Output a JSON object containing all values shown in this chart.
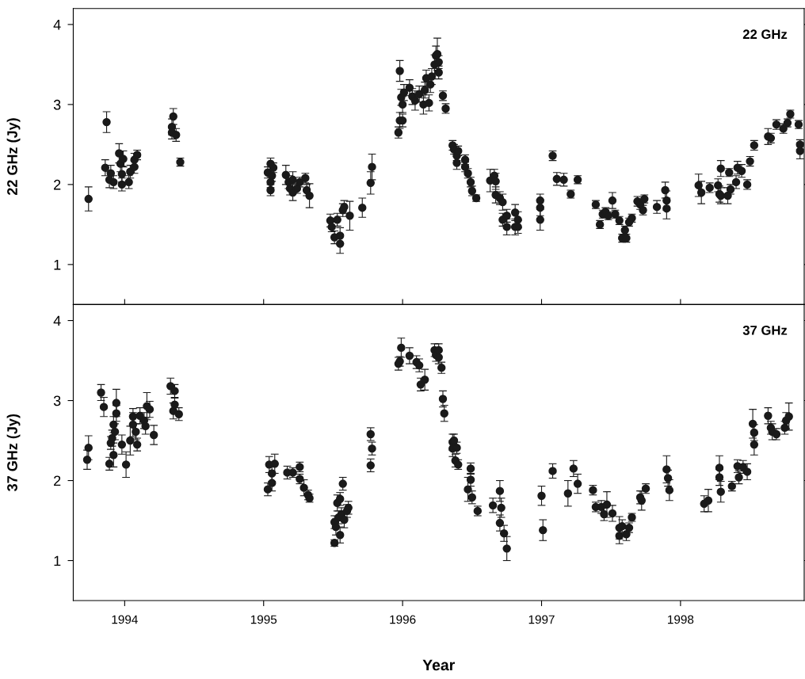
{
  "chart_data": [
    {
      "type": "scatter",
      "ylabel": "22 GHz (Jy)",
      "annotations": [
        "22 GHz"
      ],
      "marker": "circle",
      "color": "#1a1a1a",
      "tick_labels": "y",
      "xlim": [
        1993.63,
        1998.89
      ],
      "xticks": [
        1994,
        1995,
        1996,
        1997,
        1998
      ],
      "ylim": [
        0.5,
        4.2
      ],
      "yticks": [
        1,
        2,
        3,
        4
      ],
      "x": [
        1993.74,
        1993.87,
        1993.86,
        1993.89,
        1993.9,
        1993.92,
        1993.96,
        1993.97,
        1993.98,
        1993.98,
        1993.99,
        1994.03,
        1994.04,
        1994.07,
        1994.07,
        1994.09,
        1994.35,
        1994.34,
        1994.34,
        1994.37,
        1994.4,
        1995.03,
        1995.05,
        1995.05,
        1995.05,
        1995.07,
        1995.06,
        1995.16,
        1995.18,
        1995.19,
        1995.21,
        1995.21,
        1995.24,
        1995.26,
        1995.3,
        1995.31,
        1995.33,
        1995.48,
        1995.49,
        1995.51,
        1995.53,
        1995.55,
        1995.55,
        1995.57,
        1995.58,
        1995.62,
        1995.71,
        1995.77,
        1995.78,
        1995.97,
        1995.98,
        1995.98,
        1995.99,
        1996.0,
        1996.0,
        1996.01,
        1996.05,
        1996.07,
        1996.09,
        1996.12,
        1996.15,
        1996.16,
        1996.17,
        1996.19,
        1996.2,
        1996.21,
        1996.23,
        1996.24,
        1996.25,
        1996.26,
        1996.26,
        1996.29,
        1996.31,
        1996.36,
        1996.37,
        1996.39,
        1996.39,
        1996.4,
        1996.45,
        1996.45,
        1996.47,
        1996.49,
        1996.5,
        1996.53,
        1996.63,
        1996.66,
        1996.67,
        1996.67,
        1996.7,
        1996.72,
        1996.72,
        1996.75,
        1996.75,
        1996.81,
        1996.81,
        1996.83,
        1996.83,
        1996.99,
        1996.99,
        1996.99,
        1997.08,
        1997.11,
        1997.16,
        1997.21,
        1997.26,
        1997.39,
        1997.42,
        1997.44,
        1997.46,
        1997.48,
        1997.51,
        1997.53,
        1997.56,
        1997.58,
        1997.6,
        1997.61,
        1997.63,
        1997.65,
        1997.69,
        1997.71,
        1997.73,
        1997.74,
        1997.83,
        1997.89,
        1997.9,
        1997.9,
        1998.13,
        1998.15,
        1998.21,
        1998.27,
        1998.28,
        1998.29,
        1998.29,
        1998.34,
        1998.35,
        1998.36,
        1998.4,
        1998.41,
        1998.44,
        1998.48,
        1998.5,
        1998.53,
        1998.63,
        1998.65,
        1998.69,
        1998.74,
        1998.77,
        1998.79,
        1998.85,
        1998.86,
        1998.86
      ],
      "values": [
        1.82,
        2.78,
        2.21,
        2.06,
        2.14,
        2.03,
        2.39,
        2.26,
        2.13,
        2.0,
        2.32,
        2.03,
        2.16,
        2.22,
        2.31,
        2.37,
        2.85,
        2.72,
        2.65,
        2.62,
        2.28,
        2.15,
        2.26,
        2.03,
        1.93,
        2.21,
        2.11,
        2.12,
        2.03,
        1.95,
        2.06,
        1.9,
        1.95,
        2.03,
        2.08,
        1.93,
        1.86,
        1.55,
        1.47,
        1.34,
        1.56,
        1.36,
        1.26,
        1.68,
        1.72,
        1.61,
        1.71,
        2.02,
        2.22,
        2.65,
        2.8,
        3.42,
        3.09,
        2.8,
        3.0,
        3.15,
        3.21,
        3.1,
        3.05,
        3.13,
        3.0,
        3.18,
        3.33,
        3.02,
        3.25,
        3.35,
        3.5,
        3.61,
        3.63,
        3.4,
        3.53,
        3.11,
        2.95,
        2.49,
        2.44,
        2.36,
        2.27,
        2.42,
        2.31,
        2.22,
        2.14,
        2.03,
        1.92,
        1.83,
        2.05,
        2.11,
        2.04,
        1.87,
        1.83,
        1.78,
        1.56,
        1.61,
        1.47,
        1.65,
        1.47,
        1.56,
        1.47,
        1.56,
        1.71,
        1.8,
        2.36,
        2.07,
        2.06,
        1.88,
        2.06,
        1.75,
        1.5,
        1.63,
        1.66,
        1.61,
        1.8,
        1.63,
        1.55,
        1.33,
        1.43,
        1.33,
        1.53,
        1.58,
        1.79,
        1.75,
        1.68,
        1.82,
        1.72,
        1.93,
        1.8,
        1.7,
        1.99,
        1.9,
        1.96,
        1.99,
        1.88,
        2.2,
        1.86,
        1.86,
        2.15,
        1.94,
        2.03,
        2.21,
        2.17,
        2.0,
        2.29,
        2.49,
        2.6,
        2.58,
        2.75,
        2.7,
        2.77,
        2.88,
        2.75,
        2.5,
        2.42
      ],
      "errors": [
        0.15,
        0.13,
        0.1,
        0.1,
        0.1,
        0.08,
        0.12,
        0.1,
        0.1,
        0.08,
        0.1,
        0.08,
        0.08,
        0.08,
        0.08,
        0.06,
        0.1,
        0.1,
        0.08,
        0.08,
        0.05,
        0.07,
        0.07,
        0.07,
        0.07,
        0.06,
        0.07,
        0.12,
        0.08,
        0.08,
        0.1,
        0.1,
        0.06,
        0.06,
        0.06,
        0.07,
        0.15,
        0.08,
        0.06,
        0.08,
        0.08,
        0.1,
        0.12,
        0.08,
        0.08,
        0.18,
        0.12,
        0.14,
        0.16,
        0.07,
        0.1,
        0.13,
        0.1,
        0.08,
        0.1,
        0.1,
        0.1,
        0.1,
        0.12,
        0.1,
        0.12,
        0.1,
        0.1,
        0.1,
        0.1,
        0.1,
        0.12,
        0.12,
        0.2,
        0.08,
        0.08,
        0.06,
        0.06,
        0.06,
        0.06,
        0.06,
        0.08,
        0.06,
        0.06,
        0.06,
        0.06,
        0.06,
        0.06,
        0.04,
        0.14,
        0.08,
        0.1,
        0.1,
        0.08,
        0.1,
        0.08,
        0.08,
        0.1,
        0.1,
        0.1,
        0.1,
        0.08,
        0.13,
        0.1,
        0.08,
        0.06,
        0.08,
        0.08,
        0.05,
        0.05,
        0.05,
        0.05,
        0.05,
        0.05,
        0.05,
        0.1,
        0.05,
        0.05,
        0.05,
        0.05,
        0.05,
        0.05,
        0.05,
        0.06,
        0.06,
        0.06,
        0.05,
        0.08,
        0.1,
        0.12,
        0.13,
        0.14,
        0.14,
        0.06,
        0.08,
        0.1,
        0.1,
        0.1,
        0.1,
        0.05,
        0.06,
        0.08,
        0.08,
        0.08,
        0.06,
        0.06,
        0.06,
        0.1,
        0.06,
        0.06,
        0.06,
        0.05,
        0.05,
        0.05,
        0.06,
        0.1
      ]
    },
    {
      "type": "scatter",
      "ylabel": "37 GHz (Jy)",
      "xlabel": "Year",
      "annotations": [
        "37 GHz"
      ],
      "marker": "circle",
      "color": "#1a1a1a",
      "xlim": [
        1993.63,
        1998.89
      ],
      "xticks": [
        1994,
        1995,
        1996,
        1997,
        1998
      ],
      "ylim": [
        0.5,
        4.2
      ],
      "yticks": [
        1,
        2,
        3,
        4
      ],
      "x": [
        1993.73,
        1993.74,
        1993.83,
        1993.85,
        1993.89,
        1993.9,
        1993.91,
        1993.92,
        1993.93,
        1993.92,
        1993.94,
        1993.94,
        1993.98,
        1994.01,
        1994.04,
        1994.06,
        1994.06,
        1994.08,
        1994.09,
        1994.11,
        1994.14,
        1994.15,
        1994.16,
        1994.18,
        1994.21,
        1994.33,
        1994.36,
        1994.36,
        1994.35,
        1994.39,
        1995.03,
        1995.04,
        1995.06,
        1995.06,
        1995.08,
        1995.17,
        1995.21,
        1995.26,
        1995.26,
        1995.29,
        1995.32,
        1995.33,
        1995.51,
        1995.51,
        1995.52,
        1995.53,
        1995.54,
        1995.55,
        1995.55,
        1995.56,
        1995.57,
        1995.58,
        1995.6,
        1995.61,
        1995.77,
        1995.77,
        1995.78,
        1995.97,
        1995.98,
        1995.99,
        1996.05,
        1996.1,
        1996.12,
        1996.13,
        1996.16,
        1996.23,
        1996.24,
        1996.26,
        1996.26,
        1996.28,
        1996.29,
        1996.3,
        1996.36,
        1996.36,
        1996.37,
        1996.39,
        1996.38,
        1996.4,
        1996.49,
        1996.49,
        1996.47,
        1996.5,
        1996.54,
        1996.65,
        1996.7,
        1996.71,
        1996.7,
        1996.73,
        1996.75,
        1997.0,
        1997.01,
        1997.08,
        1997.19,
        1997.23,
        1997.26,
        1997.37,
        1997.39,
        1997.43,
        1997.45,
        1997.47,
        1997.51,
        1997.56,
        1997.56,
        1997.58,
        1997.61,
        1997.63,
        1997.65,
        1997.71,
        1997.72,
        1997.75,
        1997.9,
        1997.91,
        1997.92,
        1998.17,
        1998.2,
        1998.28,
        1998.28,
        1998.29,
        1998.37,
        1998.41,
        1998.42,
        1998.45,
        1998.48,
        1998.52,
        1998.53,
        1998.53,
        1998.63,
        1998.65,
        1998.66,
        1998.69,
        1998.75,
        1998.76,
        1998.78
      ],
      "values": [
        2.26,
        2.41,
        3.1,
        2.92,
        2.21,
        2.47,
        2.53,
        2.32,
        2.61,
        2.7,
        2.97,
        2.84,
        2.45,
        2.2,
        2.5,
        2.7,
        2.8,
        2.61,
        2.45,
        2.81,
        2.75,
        2.68,
        2.93,
        2.89,
        2.57,
        3.18,
        3.12,
        2.95,
        2.87,
        2.83,
        1.89,
        2.2,
        1.97,
        2.09,
        2.21,
        2.1,
        2.1,
        2.17,
        2.02,
        1.91,
        1.82,
        1.78,
        1.22,
        1.48,
        1.42,
        1.72,
        1.54,
        1.32,
        1.77,
        1.58,
        1.96,
        1.51,
        1.62,
        1.66,
        2.19,
        2.58,
        2.4,
        3.46,
        3.49,
        3.66,
        3.56,
        3.48,
        3.44,
        3.2,
        3.26,
        3.63,
        3.57,
        3.63,
        3.54,
        3.41,
        3.02,
        2.84,
        2.48,
        2.4,
        2.5,
        2.41,
        2.25,
        2.2,
        2.15,
        2.01,
        1.89,
        1.79,
        1.62,
        1.69,
        1.87,
        1.66,
        1.47,
        1.34,
        1.15,
        1.81,
        1.38,
        2.12,
        1.84,
        2.15,
        1.96,
        1.88,
        1.67,
        1.67,
        1.58,
        1.7,
        1.59,
        1.41,
        1.31,
        1.43,
        1.33,
        1.41,
        1.54,
        1.79,
        1.75,
        1.9,
        2.14,
        2.03,
        1.88,
        1.71,
        1.75,
        2.16,
        2.04,
        1.86,
        1.93,
        2.18,
        2.04,
        2.17,
        2.11,
        2.71,
        2.6,
        2.45,
        2.81,
        2.66,
        2.61,
        2.58,
        2.66,
        2.75,
        2.8
      ],
      "errors": [
        0.12,
        0.15,
        0.1,
        0.12,
        0.08,
        0.08,
        0.1,
        0.15,
        0.1,
        0.1,
        0.17,
        0.1,
        0.12,
        0.16,
        0.18,
        0.15,
        0.1,
        0.1,
        0.08,
        0.1,
        0.1,
        0.1,
        0.17,
        0.1,
        0.12,
        0.1,
        0.08,
        0.08,
        0.1,
        0.08,
        0.08,
        0.1,
        0.1,
        0.1,
        0.12,
        0.08,
        0.06,
        0.06,
        0.06,
        0.1,
        0.06,
        0.05,
        0.04,
        0.08,
        0.1,
        0.1,
        0.08,
        0.1,
        0.08,
        0.08,
        0.08,
        0.1,
        0.08,
        0.08,
        0.08,
        0.08,
        0.08,
        0.08,
        0.06,
        0.12,
        0.1,
        0.08,
        0.08,
        0.08,
        0.13,
        0.08,
        0.08,
        0.08,
        0.08,
        0.07,
        0.1,
        0.1,
        0.1,
        0.1,
        0.08,
        0.07,
        0.08,
        0.06,
        0.07,
        0.08,
        0.15,
        0.08,
        0.06,
        0.09,
        0.13,
        0.12,
        0.1,
        0.1,
        0.15,
        0.12,
        0.13,
        0.09,
        0.16,
        0.1,
        0.12,
        0.06,
        0.06,
        0.08,
        0.08,
        0.16,
        0.1,
        0.14,
        0.1,
        0.08,
        0.08,
        0.06,
        0.05,
        0.08,
        0.12,
        0.06,
        0.17,
        0.1,
        0.13,
        0.1,
        0.14,
        0.15,
        0.1,
        0.13,
        0.06,
        0.08,
        0.08,
        0.08,
        0.1,
        0.18,
        0.1,
        0.13,
        0.1,
        0.08,
        0.1,
        0.07,
        0.08,
        0.1,
        0.17
      ]
    }
  ]
}
